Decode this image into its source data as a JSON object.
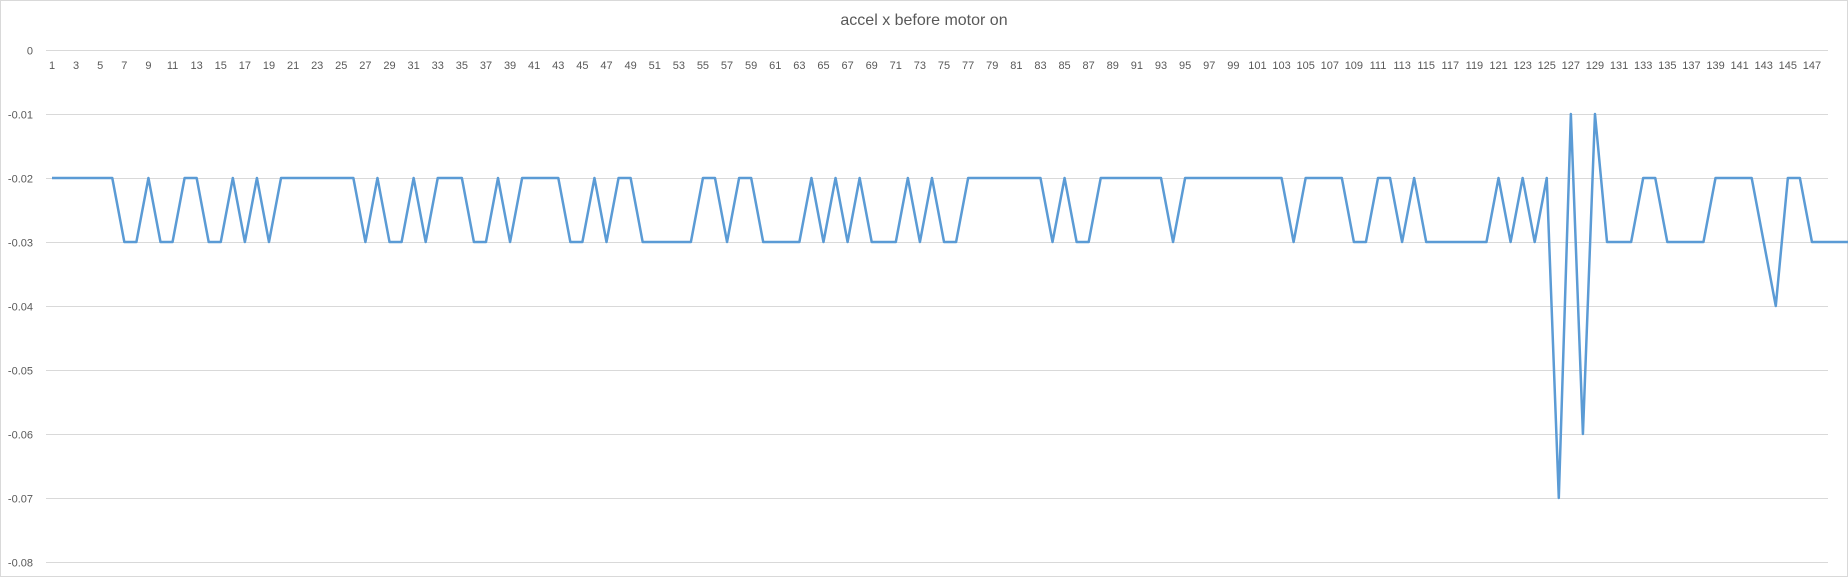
{
  "chart_data": {
    "type": "line",
    "title": "accel x before motor on",
    "xlabel": "",
    "ylabel": "",
    "ylim": [
      -0.08,
      0
    ],
    "y_ticks": [
      0,
      -0.01,
      -0.02,
      -0.03,
      -0.04,
      -0.05,
      -0.06,
      -0.07,
      -0.08
    ],
    "y_tick_labels": [
      "0",
      "-0.01",
      "-0.02",
      "-0.03",
      "-0.04",
      "-0.05",
      "-0.06",
      "-0.07",
      "-0.08"
    ],
    "x_range": [
      1,
      148
    ],
    "x_tick_labels": [
      "1",
      "3",
      "5",
      "7",
      "9",
      "11",
      "13",
      "15",
      "17",
      "19",
      "21",
      "23",
      "25",
      "27",
      "29",
      "31",
      "33",
      "35",
      "37",
      "39",
      "41",
      "43",
      "45",
      "47",
      "49",
      "51",
      "53",
      "55",
      "57",
      "59",
      "61",
      "63",
      "65",
      "67",
      "69",
      "71",
      "73",
      "75",
      "77",
      "79",
      "81",
      "83",
      "85",
      "87",
      "89",
      "91",
      "93",
      "95",
      "97",
      "99",
      "101",
      "103",
      "105",
      "107",
      "109",
      "111",
      "113",
      "115",
      "117",
      "119",
      "121",
      "123",
      "125",
      "127",
      "129",
      "131",
      "133",
      "135",
      "137",
      "139",
      "141",
      "143",
      "145",
      "147"
    ],
    "grid": true,
    "legend": "none",
    "series": [
      {
        "color": "#5b9bd5",
        "values": [
          -0.02,
          -0.02,
          -0.02,
          -0.02,
          -0.02,
          -0.02,
          -0.03,
          -0.03,
          -0.02,
          -0.03,
          -0.03,
          -0.02,
          -0.02,
          -0.03,
          -0.03,
          -0.02,
          -0.03,
          -0.02,
          -0.03,
          -0.02,
          -0.02,
          -0.02,
          -0.02,
          -0.02,
          -0.02,
          -0.02,
          -0.03,
          -0.02,
          -0.03,
          -0.03,
          -0.02,
          -0.03,
          -0.02,
          -0.02,
          -0.02,
          -0.03,
          -0.03,
          -0.02,
          -0.03,
          -0.02,
          -0.02,
          -0.02,
          -0.02,
          -0.03,
          -0.03,
          -0.02,
          -0.03,
          -0.02,
          -0.02,
          -0.03,
          -0.03,
          -0.03,
          -0.03,
          -0.03,
          -0.02,
          -0.02,
          -0.03,
          -0.02,
          -0.02,
          -0.03,
          -0.03,
          -0.03,
          -0.03,
          -0.02,
          -0.03,
          -0.02,
          -0.03,
          -0.02,
          -0.03,
          -0.03,
          -0.03,
          -0.02,
          -0.03,
          -0.02,
          -0.03,
          -0.03,
          -0.02,
          -0.02,
          -0.02,
          -0.02,
          -0.02,
          -0.02,
          -0.02,
          -0.03,
          -0.02,
          -0.03,
          -0.03,
          -0.02,
          -0.02,
          -0.02,
          -0.02,
          -0.02,
          -0.02,
          -0.03,
          -0.02,
          -0.02,
          -0.02,
          -0.02,
          -0.02,
          -0.02,
          -0.02,
          -0.02,
          -0.02,
          -0.03,
          -0.02,
          -0.02,
          -0.02,
          -0.02,
          -0.03,
          -0.03,
          -0.02,
          -0.02,
          -0.03,
          -0.02,
          -0.03,
          -0.03,
          -0.03,
          -0.03,
          -0.03,
          -0.03,
          -0.02,
          -0.03,
          -0.02,
          -0.03,
          -0.02,
          -0.07,
          -0.01,
          -0.06,
          -0.01,
          -0.03,
          -0.03,
          -0.03,
          -0.02,
          -0.02,
          -0.03,
          -0.03,
          -0.03,
          -0.03,
          -0.02,
          -0.02,
          -0.02,
          -0.02,
          -0.03,
          -0.04,
          -0.02,
          -0.02,
          -0.03,
          -0.03,
          -0.03,
          -0.03
        ]
      }
    ]
  }
}
